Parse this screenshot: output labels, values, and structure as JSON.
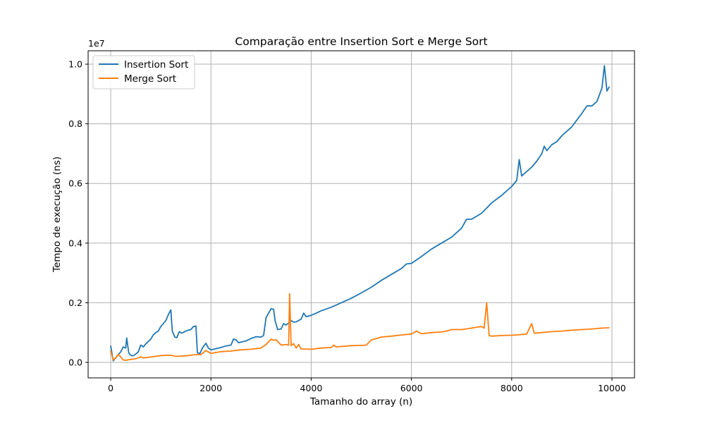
{
  "chart_data": {
    "type": "line",
    "title": "Comparação entre Insertion Sort e Merge Sort",
    "xlabel": "Tamanho do array (n)",
    "ylabel": "Tempo de execução (ns)",
    "y_offset_label": "1e7",
    "xlim": [
      -450,
      10450
    ],
    "ylim": [
      -520000,
      10450000
    ],
    "x_ticks": [
      0,
      2000,
      4000,
      6000,
      8000,
      10000
    ],
    "x_tick_labels": [
      "0",
      "2000",
      "4000",
      "6000",
      "8000",
      "10000"
    ],
    "y_ticks": [
      0,
      2000000,
      4000000,
      6000000,
      8000000,
      10000000
    ],
    "y_tick_labels": [
      "0.0",
      "0.2",
      "0.4",
      "0.6",
      "0.8",
      "1.0"
    ],
    "grid": true,
    "legend_position": "top-left",
    "series": [
      {
        "name": "Insertion Sort",
        "color": "#1f77b4",
        "points": [
          [
            0,
            560000
          ],
          [
            50,
            50000
          ],
          [
            100,
            150000
          ],
          [
            150,
            260000
          ],
          [
            200,
            350000
          ],
          [
            250,
            520000
          ],
          [
            300,
            480000
          ],
          [
            320,
            820000
          ],
          [
            360,
            320000
          ],
          [
            400,
            240000
          ],
          [
            450,
            220000
          ],
          [
            500,
            280000
          ],
          [
            550,
            350000
          ],
          [
            600,
            580000
          ],
          [
            650,
            520000
          ],
          [
            700,
            620000
          ],
          [
            800,
            780000
          ],
          [
            850,
            920000
          ],
          [
            900,
            1000000
          ],
          [
            950,
            1050000
          ],
          [
            1000,
            1200000
          ],
          [
            1100,
            1400000
          ],
          [
            1150,
            1600000
          ],
          [
            1200,
            1760000
          ],
          [
            1230,
            1050000
          ],
          [
            1280,
            850000
          ],
          [
            1320,
            830000
          ],
          [
            1370,
            1030000
          ],
          [
            1420,
            980000
          ],
          [
            1500,
            1050000
          ],
          [
            1550,
            1080000
          ],
          [
            1600,
            1100000
          ],
          [
            1650,
            1200000
          ],
          [
            1700,
            1220000
          ],
          [
            1730,
            320000
          ],
          [
            1780,
            300000
          ],
          [
            1830,
            480000
          ],
          [
            1900,
            640000
          ],
          [
            1950,
            480000
          ],
          [
            2000,
            420000
          ],
          [
            2200,
            500000
          ],
          [
            2300,
            550000
          ],
          [
            2400,
            580000
          ],
          [
            2450,
            780000
          ],
          [
            2500,
            760000
          ],
          [
            2550,
            660000
          ],
          [
            2700,
            720000
          ],
          [
            2800,
            800000
          ],
          [
            2900,
            860000
          ],
          [
            3000,
            850000
          ],
          [
            3050,
            900000
          ],
          [
            3100,
            1500000
          ],
          [
            3200,
            1800000
          ],
          [
            3250,
            1780000
          ],
          [
            3280,
            1400000
          ],
          [
            3330,
            1100000
          ],
          [
            3400,
            1120000
          ],
          [
            3450,
            1300000
          ],
          [
            3500,
            1250000
          ],
          [
            3550,
            1320000
          ],
          [
            3600,
            1400000
          ],
          [
            3650,
            1350000
          ],
          [
            3700,
            1360000
          ],
          [
            3800,
            1450000
          ],
          [
            3850,
            1650000
          ],
          [
            3900,
            1530000
          ],
          [
            4000,
            1580000
          ],
          [
            4100,
            1650000
          ],
          [
            4200,
            1730000
          ],
          [
            4400,
            1850000
          ],
          [
            4600,
            2000000
          ],
          [
            4800,
            2150000
          ],
          [
            5000,
            2330000
          ],
          [
            5200,
            2520000
          ],
          [
            5400,
            2750000
          ],
          [
            5600,
            2950000
          ],
          [
            5800,
            3150000
          ],
          [
            5900,
            3300000
          ],
          [
            6000,
            3320000
          ],
          [
            6200,
            3550000
          ],
          [
            6400,
            3800000
          ],
          [
            6600,
            4000000
          ],
          [
            6800,
            4200000
          ],
          [
            7000,
            4500000
          ],
          [
            7100,
            4800000
          ],
          [
            7200,
            4800000
          ],
          [
            7400,
            5000000
          ],
          [
            7600,
            5350000
          ],
          [
            7800,
            5600000
          ],
          [
            8000,
            5900000
          ],
          [
            8100,
            6100000
          ],
          [
            8150,
            6800000
          ],
          [
            8200,
            6250000
          ],
          [
            8300,
            6400000
          ],
          [
            8400,
            6550000
          ],
          [
            8500,
            6750000
          ],
          [
            8600,
            7000000
          ],
          [
            8650,
            7250000
          ],
          [
            8700,
            7100000
          ],
          [
            8800,
            7300000
          ],
          [
            8900,
            7400000
          ],
          [
            9000,
            7600000
          ],
          [
            9200,
            7900000
          ],
          [
            9400,
            8350000
          ],
          [
            9500,
            8600000
          ],
          [
            9600,
            8600000
          ],
          [
            9700,
            8750000
          ],
          [
            9800,
            9200000
          ],
          [
            9850,
            9950000
          ],
          [
            9900,
            9100000
          ],
          [
            9950,
            9250000
          ]
        ]
      },
      {
        "name": "Merge Sort",
        "color": "#ff7f0e",
        "points": [
          [
            0,
            400000
          ],
          [
            50,
            80000
          ],
          [
            100,
            150000
          ],
          [
            150,
            270000
          ],
          [
            200,
            180000
          ],
          [
            250,
            80000
          ],
          [
            300,
            70000
          ],
          [
            400,
            100000
          ],
          [
            500,
            120000
          ],
          [
            600,
            190000
          ],
          [
            650,
            150000
          ],
          [
            800,
            180000
          ],
          [
            1000,
            230000
          ],
          [
            1200,
            240000
          ],
          [
            1300,
            200000
          ],
          [
            1500,
            220000
          ],
          [
            1700,
            260000
          ],
          [
            1800,
            260000
          ],
          [
            1900,
            400000
          ],
          [
            1950,
            350000
          ],
          [
            2000,
            300000
          ],
          [
            2200,
            360000
          ],
          [
            2400,
            380000
          ],
          [
            2600,
            420000
          ],
          [
            2800,
            440000
          ],
          [
            3000,
            480000
          ],
          [
            3100,
            600000
          ],
          [
            3200,
            780000
          ],
          [
            3250,
            740000
          ],
          [
            3300,
            760000
          ],
          [
            3400,
            580000
          ],
          [
            3500,
            600000
          ],
          [
            3550,
            580000
          ],
          [
            3570,
            2300000
          ],
          [
            3600,
            560000
          ],
          [
            3650,
            630000
          ],
          [
            3700,
            480000
          ],
          [
            3750,
            600000
          ],
          [
            3800,
            450000
          ],
          [
            4000,
            440000
          ],
          [
            4200,
            480000
          ],
          [
            4400,
            500000
          ],
          [
            4450,
            580000
          ],
          [
            4500,
            520000
          ],
          [
            4800,
            560000
          ],
          [
            5000,
            570000
          ],
          [
            5100,
            580000
          ],
          [
            5200,
            750000
          ],
          [
            5400,
            850000
          ],
          [
            5600,
            880000
          ],
          [
            5800,
            920000
          ],
          [
            6000,
            950000
          ],
          [
            6100,
            1050000
          ],
          [
            6200,
            960000
          ],
          [
            6400,
            1000000
          ],
          [
            6600,
            1020000
          ],
          [
            6700,
            1050000
          ],
          [
            6800,
            1100000
          ],
          [
            7000,
            1100000
          ],
          [
            7200,
            1150000
          ],
          [
            7300,
            1180000
          ],
          [
            7400,
            1200000
          ],
          [
            7450,
            1150000
          ],
          [
            7500,
            2000000
          ],
          [
            7550,
            900000
          ],
          [
            7600,
            880000
          ],
          [
            7800,
            900000
          ],
          [
            8000,
            910000
          ],
          [
            8100,
            920000
          ],
          [
            8300,
            950000
          ],
          [
            8400,
            1300000
          ],
          [
            8450,
            980000
          ],
          [
            8600,
            1000000
          ],
          [
            8800,
            1030000
          ],
          [
            9000,
            1050000
          ],
          [
            9200,
            1080000
          ],
          [
            9400,
            1100000
          ],
          [
            9600,
            1120000
          ],
          [
            9800,
            1150000
          ],
          [
            9950,
            1160000
          ]
        ]
      }
    ]
  }
}
